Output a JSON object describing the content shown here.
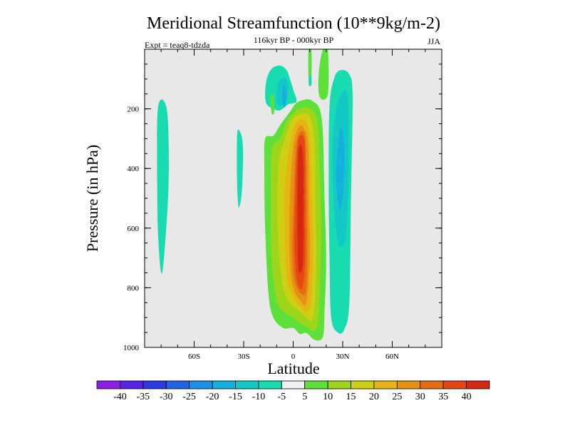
{
  "chart_data": {
    "type": "contour",
    "title": "Meridional Streamfunction (10**9kg/m-2)",
    "subtitle": "116kyr BP - 000kyr BP",
    "left_label": "Expt = teaq8-tdzda",
    "right_label": "JJA",
    "xlabel": "Latitude",
    "ylabel": "Pressure (in hPa)",
    "xlim": [
      -90,
      90
    ],
    "ylim": [
      0,
      1000
    ],
    "x_ticks": [
      {
        "value": -60,
        "label": "60S"
      },
      {
        "value": -30,
        "label": "30S"
      },
      {
        "value": 0,
        "label": "0"
      },
      {
        "value": 30,
        "label": "30N"
      },
      {
        "value": 60,
        "label": "60N"
      }
    ],
    "y_ticks": [
      {
        "value": 200,
        "label": "200"
      },
      {
        "value": 400,
        "label": "400"
      },
      {
        "value": 600,
        "label": "600"
      },
      {
        "value": 800,
        "label": "800"
      },
      {
        "value": 1000,
        "label": "1000"
      }
    ],
    "background_color": "#e8e8e8",
    "colorbar": {
      "levels": [
        -40,
        -35,
        -30,
        -25,
        -20,
        -15,
        -10,
        -5,
        5,
        10,
        15,
        20,
        25,
        30,
        35,
        40
      ],
      "labels": [
        "-40",
        "-35",
        "-30",
        "-25",
        "-20",
        "-15",
        "-10",
        "-5",
        "5",
        "10",
        "15",
        "20",
        "25",
        "30",
        "35",
        "40"
      ],
      "colors": [
        "#8a1ee6",
        "#5a20e6",
        "#2a3ae0",
        "#1f64e6",
        "#1c8fe6",
        "#14b0e0",
        "#14c8c8",
        "#18dcb0",
        "#f0f0f0",
        "#5ee03a",
        "#9cd51a",
        "#cfcf14",
        "#e6b414",
        "#e69114",
        "#e66c14",
        "#e64614",
        "#d42812"
      ]
    },
    "regions": [
      {
        "name": "positive-cell-outer",
        "value": 5,
        "points": [
          [
            -17,
            300
          ],
          [
            -12,
            290
          ],
          [
            -8,
            255
          ],
          [
            -2,
            210
          ],
          [
            2,
            180
          ],
          [
            8,
            168
          ],
          [
            12,
            175
          ],
          [
            16,
            200
          ],
          [
            18,
            280
          ],
          [
            19,
            500
          ],
          [
            20,
            700
          ],
          [
            19,
            880
          ],
          [
            18,
            965
          ],
          [
            13,
            975
          ],
          [
            8,
            952
          ],
          [
            4,
            955
          ],
          [
            0,
            935
          ],
          [
            -6,
            935
          ],
          [
            -12,
            900
          ],
          [
            -15,
            820
          ],
          [
            -17,
            600
          ],
          [
            -17.5,
            400
          ]
        ]
      },
      {
        "name": "positive-cell-10",
        "value": 10,
        "points": [
          [
            -13,
            340
          ],
          [
            -8,
            300
          ],
          [
            -4,
            245
          ],
          [
            0,
            215
          ],
          [
            4,
            198
          ],
          [
            9,
            195
          ],
          [
            13,
            215
          ],
          [
            15,
            260
          ],
          [
            16,
            400
          ],
          [
            17,
            600
          ],
          [
            16,
            820
          ],
          [
            15,
            920
          ],
          [
            12,
            945
          ],
          [
            8,
            930
          ],
          [
            4,
            920
          ],
          [
            0,
            900
          ],
          [
            -6,
            880
          ],
          [
            -10,
            840
          ],
          [
            -13,
            720
          ],
          [
            -13.5,
            500
          ]
        ]
      },
      {
        "name": "positive-cell-15",
        "value": 15,
        "points": [
          [
            -9,
            400
          ],
          [
            -5,
            300
          ],
          [
            -1,
            240
          ],
          [
            3,
            220
          ],
          [
            8,
            215
          ],
          [
            11,
            240
          ],
          [
            13,
            320
          ],
          [
            13.5,
            500
          ],
          [
            14,
            700
          ],
          [
            13,
            860
          ],
          [
            11,
            910
          ],
          [
            7,
            895
          ],
          [
            3,
            875
          ],
          [
            -2,
            850
          ],
          [
            -6,
            800
          ],
          [
            -9,
            650
          ]
        ]
      },
      {
        "name": "positive-cell-20",
        "value": 20,
        "points": [
          [
            -5,
            450
          ],
          [
            -2,
            320
          ],
          [
            1,
            255
          ],
          [
            5,
            235
          ],
          [
            8,
            245
          ],
          [
            10,
            300
          ],
          [
            11,
            450
          ],
          [
            12,
            650
          ],
          [
            11,
            840
          ],
          [
            8,
            880
          ],
          [
            4,
            860
          ],
          [
            0,
            830
          ],
          [
            -4,
            760
          ],
          [
            -5,
            600
          ]
        ]
      },
      {
        "name": "positive-cell-25",
        "value": 25,
        "points": [
          [
            -2,
            500
          ],
          [
            0,
            330
          ],
          [
            3,
            265
          ],
          [
            6,
            260
          ],
          [
            9,
            320
          ],
          [
            9.5,
            500
          ],
          [
            10,
            700
          ],
          [
            8,
            850
          ],
          [
            4,
            840
          ],
          [
            0,
            800
          ],
          [
            -2,
            700
          ]
        ]
      },
      {
        "name": "positive-cell-30",
        "value": 30,
        "points": [
          [
            0,
            550
          ],
          [
            1.5,
            340
          ],
          [
            4,
            280
          ],
          [
            7,
            290
          ],
          [
            8,
            400
          ],
          [
            8.5,
            600
          ],
          [
            8,
            800
          ],
          [
            5,
            820
          ],
          [
            1,
            780
          ],
          [
            -0.5,
            680
          ]
        ]
      },
      {
        "name": "positive-cell-35",
        "value": 35,
        "points": [
          [
            1,
            560
          ],
          [
            2.5,
            330
          ],
          [
            4.5,
            290
          ],
          [
            7,
            320
          ],
          [
            7.2,
            500
          ],
          [
            7.2,
            700
          ],
          [
            5.5,
            800
          ],
          [
            2.5,
            780
          ],
          [
            1,
            700
          ]
        ]
      },
      {
        "name": "positive-cell-40",
        "value": 40,
        "points": [
          [
            2.5,
            560
          ],
          [
            3,
            360
          ],
          [
            4.5,
            320
          ],
          [
            6,
            360
          ],
          [
            6.2,
            500
          ],
          [
            6,
            700
          ],
          [
            4.5,
            750
          ],
          [
            3,
            720
          ]
        ]
      },
      {
        "name": "upper-tail-left",
        "value": 5,
        "points": [
          [
            18,
            0
          ],
          [
            21,
            0
          ],
          [
            21,
            150
          ],
          [
            16,
            160
          ],
          [
            15.5,
            80
          ]
        ]
      },
      {
        "name": "upper-tail-mid",
        "value": 5,
        "points": [
          [
            9.3,
            0
          ],
          [
            11,
            0
          ],
          [
            11,
            90
          ],
          [
            9.3,
            90
          ]
        ]
      },
      {
        "name": "upper-tail-mid-neg",
        "value": -10,
        "points": [
          [
            9.5,
            90
          ],
          [
            11,
            90
          ],
          [
            11,
            120
          ],
          [
            9.5,
            120
          ]
        ]
      },
      {
        "name": "negative-cell-north-outer",
        "value": -10,
        "points": [
          [
            22,
            190
          ],
          [
            25,
            95
          ],
          [
            29,
            70
          ],
          [
            34,
            85
          ],
          [
            36,
            160
          ],
          [
            35,
            500
          ],
          [
            34,
            850
          ],
          [
            31,
            940
          ],
          [
            27,
            950
          ],
          [
            23,
            900
          ],
          [
            22,
            700
          ],
          [
            21.5,
            450
          ]
        ]
      },
      {
        "name": "negative-cell-north-15",
        "value": -15,
        "points": [
          [
            24,
            310
          ],
          [
            26,
            200
          ],
          [
            29,
            150
          ],
          [
            33,
            160
          ],
          [
            33.5,
            400
          ],
          [
            32,
            620
          ],
          [
            28,
            660
          ],
          [
            25,
            560
          ],
          [
            24,
            420
          ]
        ]
      },
      {
        "name": "negative-cell-north-20",
        "value": -20,
        "points": [
          [
            26,
            430
          ],
          [
            27,
            330
          ],
          [
            29,
            260
          ],
          [
            31,
            330
          ],
          [
            30.5,
            470
          ],
          [
            28,
            540
          ]
        ]
      },
      {
        "name": "negative-cell-upper-outer",
        "value": -10,
        "points": [
          [
            -17,
            150
          ],
          [
            -16,
            100
          ],
          [
            -13,
            65
          ],
          [
            -8,
            55
          ],
          [
            -4,
            70
          ],
          [
            -2,
            100
          ],
          [
            0,
            135
          ],
          [
            2,
            175
          ],
          [
            -3,
            185
          ],
          [
            -8,
            205
          ],
          [
            -12,
            200
          ],
          [
            -16,
            185
          ]
        ]
      },
      {
        "name": "negative-cell-upper-15",
        "value": -15,
        "points": [
          [
            -10,
            150
          ],
          [
            -9,
            110
          ],
          [
            -5,
            95
          ],
          [
            -3,
            125
          ],
          [
            -4,
            175
          ],
          [
            -7,
            190
          ],
          [
            -10,
            180
          ]
        ]
      },
      {
        "name": "negative-cell-upper-20",
        "value": -20,
        "points": [
          [
            -6.5,
            170
          ],
          [
            -6,
            120
          ],
          [
            -4,
            150
          ],
          [
            -5,
            195
          ]
        ]
      },
      {
        "name": "negative-small-south",
        "value": -10,
        "points": [
          [
            -82,
            200
          ],
          [
            -79,
            170
          ],
          [
            -76,
            230
          ],
          [
            -75.5,
            450
          ],
          [
            -78,
            680
          ],
          [
            -80,
            750
          ],
          [
            -82,
            600
          ],
          [
            -82.5,
            350
          ]
        ]
      },
      {
        "name": "negative-small-mid",
        "value": -10,
        "points": [
          [
            -34,
            300
          ],
          [
            -33,
            270
          ],
          [
            -30.5,
            320
          ],
          [
            -31,
            470
          ],
          [
            -33,
            530
          ],
          [
            -34,
            440
          ]
        ]
      },
      {
        "name": "positive-left-sliver",
        "value": 5,
        "points": [
          [
            -14,
            160
          ],
          [
            -12,
            155
          ],
          [
            -11.5,
            210
          ],
          [
            -13,
            215
          ]
        ]
      }
    ]
  }
}
